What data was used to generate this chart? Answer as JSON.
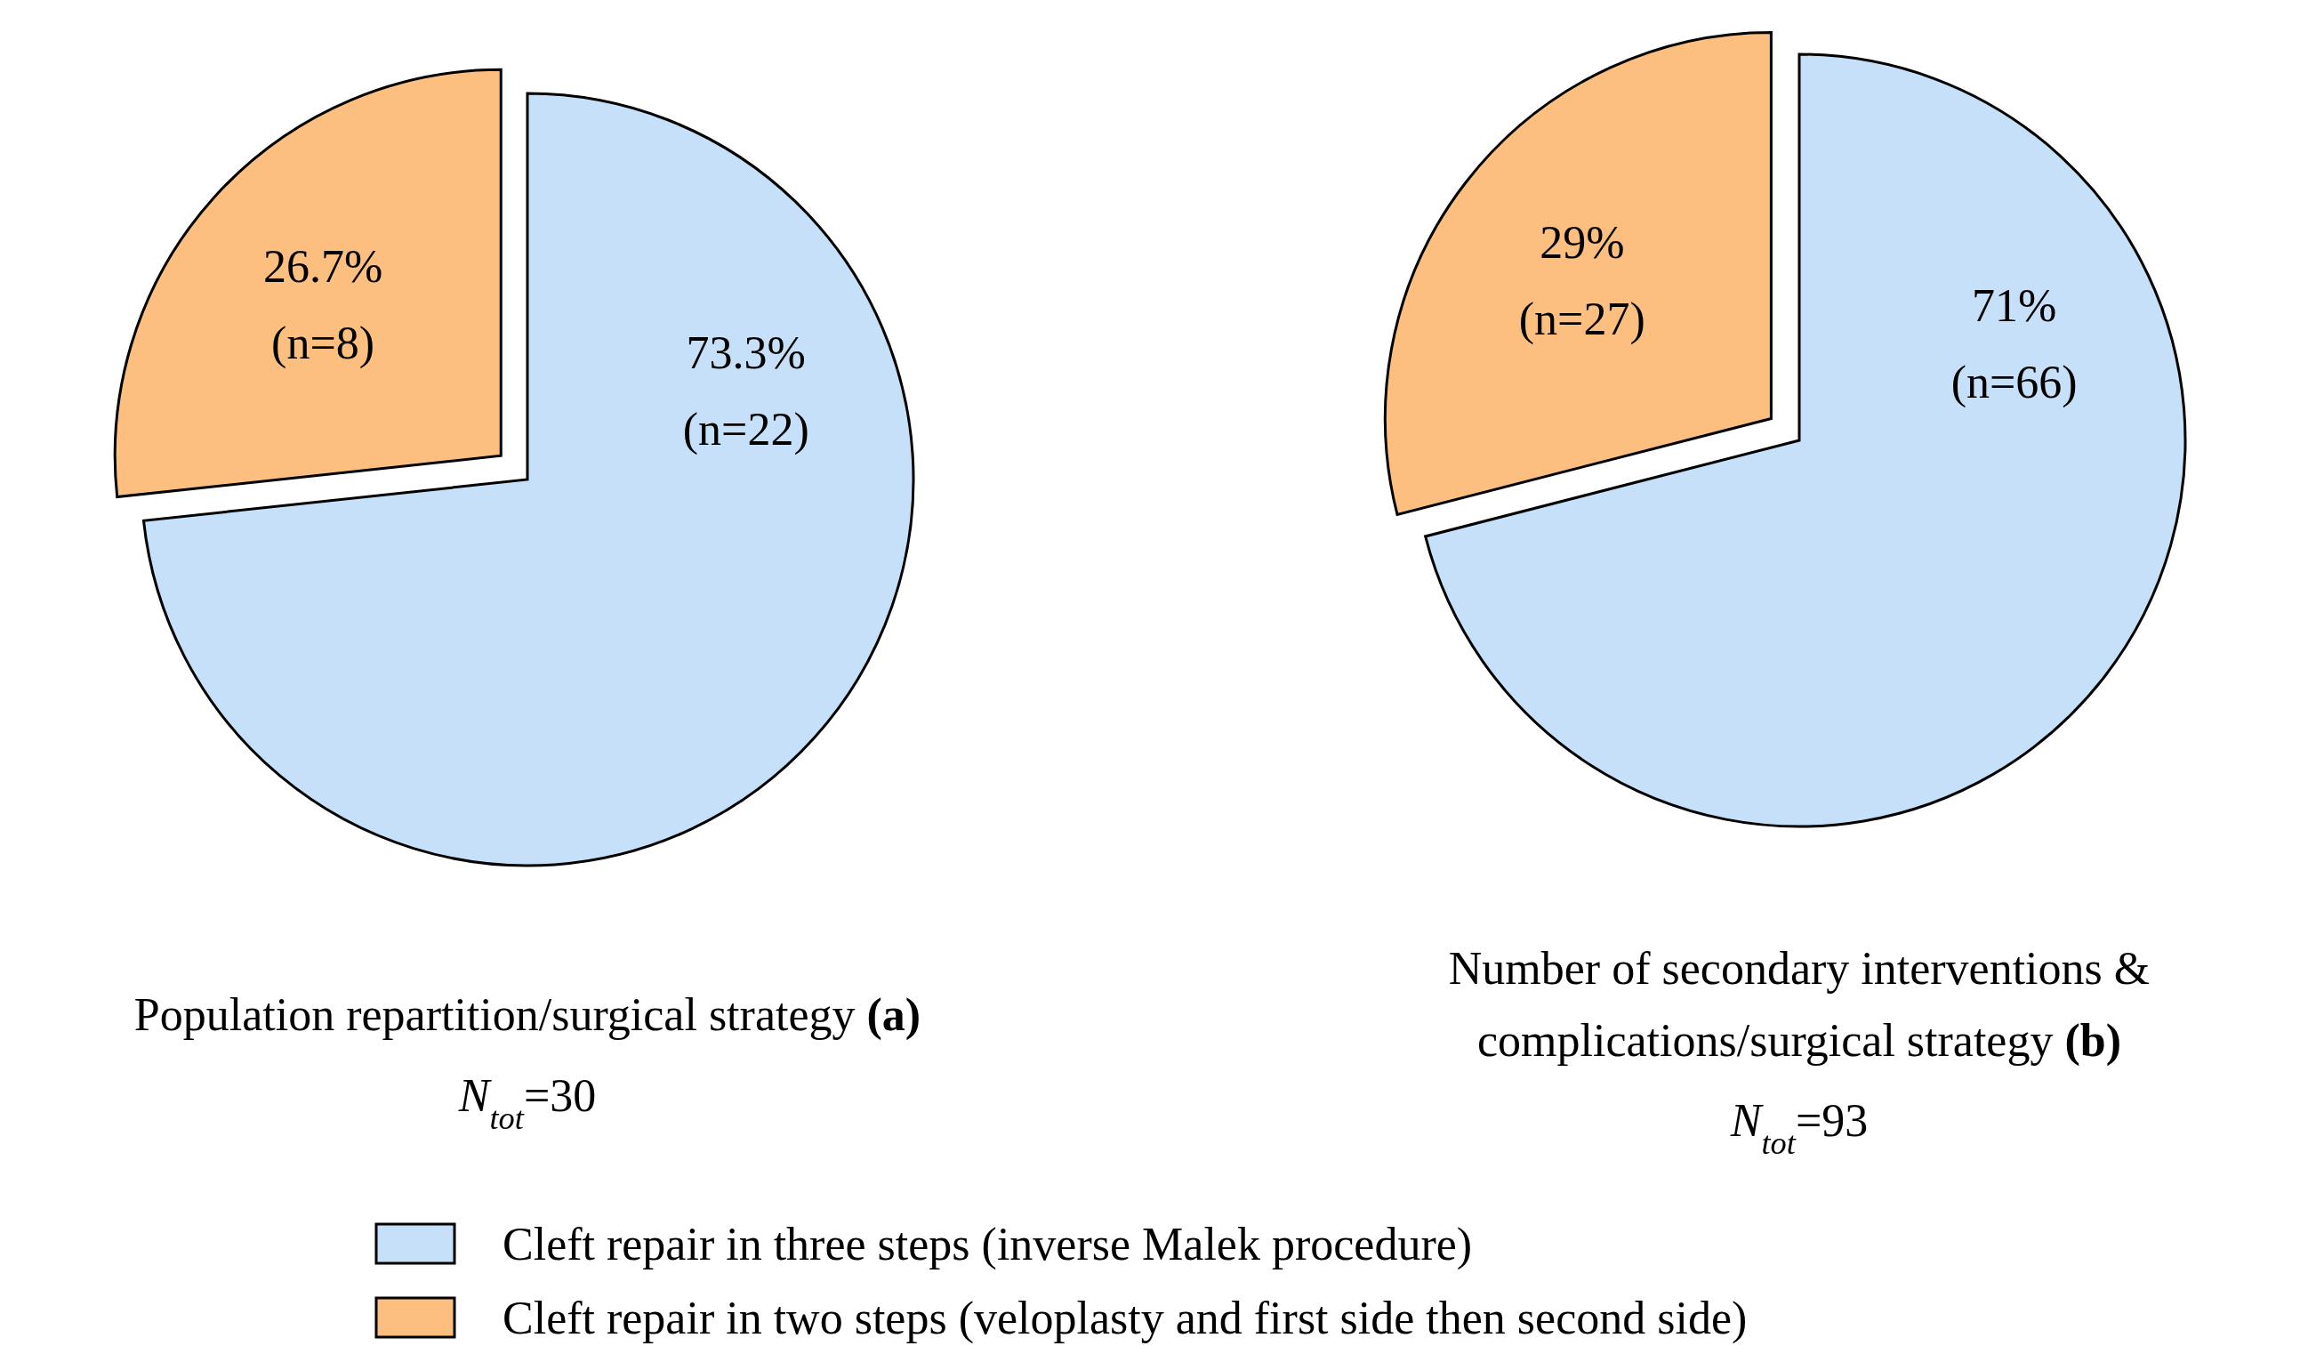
{
  "chart_data": [
    {
      "type": "pie",
      "title": "Population repartition/surgical strategy (a)",
      "subtitle": "N$_{tot}$=30",
      "categories": [
        "Cleft repair in three steps (inverse Malek procedure)",
        "Cleft repair in two steps (veloplasty and first side then second side)"
      ],
      "values": [
        73.3,
        26.7
      ],
      "colors": [
        "#c5e0f8",
        "#fdbf80"
      ],
      "value_labels": [
        "73.3%\n(n=22)",
        "26.7%\n(n=8)"
      ],
      "legend": "bottom"
    },
    {
      "type": "pie",
      "title": "Number of secondary interventions & complications/surgical strategy (b)",
      "subtitle": "N$_{tot}$=93",
      "categories": [
        null,
        null
      ],
      "values": [
        71,
        29
      ],
      "colors": [
        "#c5e0f8",
        "#fdbf80"
      ],
      "value_labels": [
        "71%\n(n=66)",
        "29%\n(n=27)"
      ]
    }
  ]
}
